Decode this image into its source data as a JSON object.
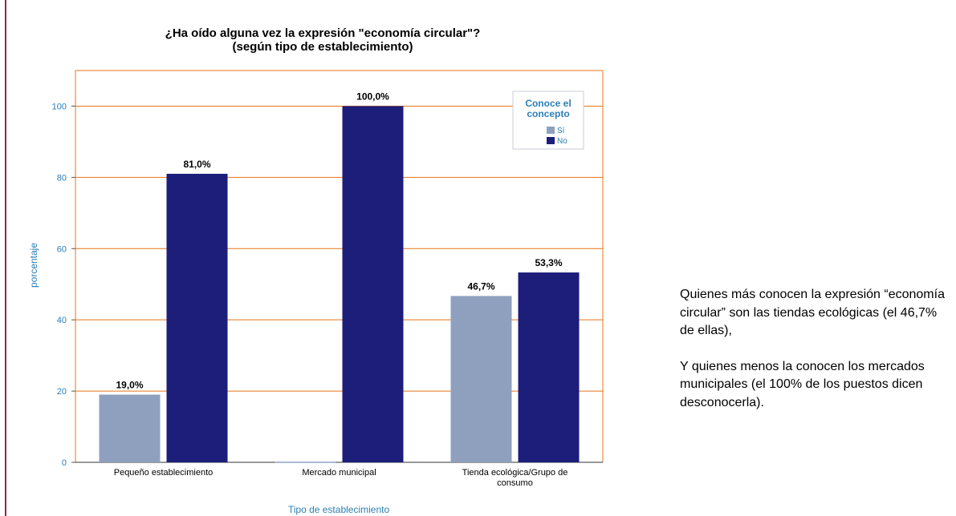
{
  "chart_data": {
    "type": "bar",
    "title": "¿Ha oído alguna vez la expresión \"economía circular\"?",
    "subtitle": "(según tipo de establecimiento)",
    "xlabel": "Tipo de establecimiento",
    "ylabel": "porcentaje",
    "ylim": [
      0,
      110
    ],
    "yticks": [
      "0",
      "20",
      "40",
      "60",
      "80",
      "100"
    ],
    "grid": true,
    "legend": {
      "title": "Conoce el concepto",
      "placement": "top-right"
    },
    "categories": [
      "Pequeño establecimiento",
      "Mercado municipal",
      "Tienda ecológica/Grupo de consumo"
    ],
    "series": [
      {
        "name": "Sí",
        "color": "#8fa0bf",
        "values": [
          19.0,
          0,
          46.7
        ],
        "labels": [
          "19,0%",
          "",
          "46,7%"
        ]
      },
      {
        "name": "No",
        "color": "#1c1e7a",
        "values": [
          81.0,
          100.0,
          53.3
        ],
        "labels": [
          "81,0%",
          "100,0%",
          "53,3%"
        ]
      }
    ]
  },
  "summary": {
    "paragraph1": "Quienes más conocen la expresión “economía circular” son las tiendas ecológicas (el 46,7% de ellas),",
    "paragraph2": "Y quienes menos la conocen los mercados municipales (el 100% de los puestos dicen desconocerla)."
  }
}
